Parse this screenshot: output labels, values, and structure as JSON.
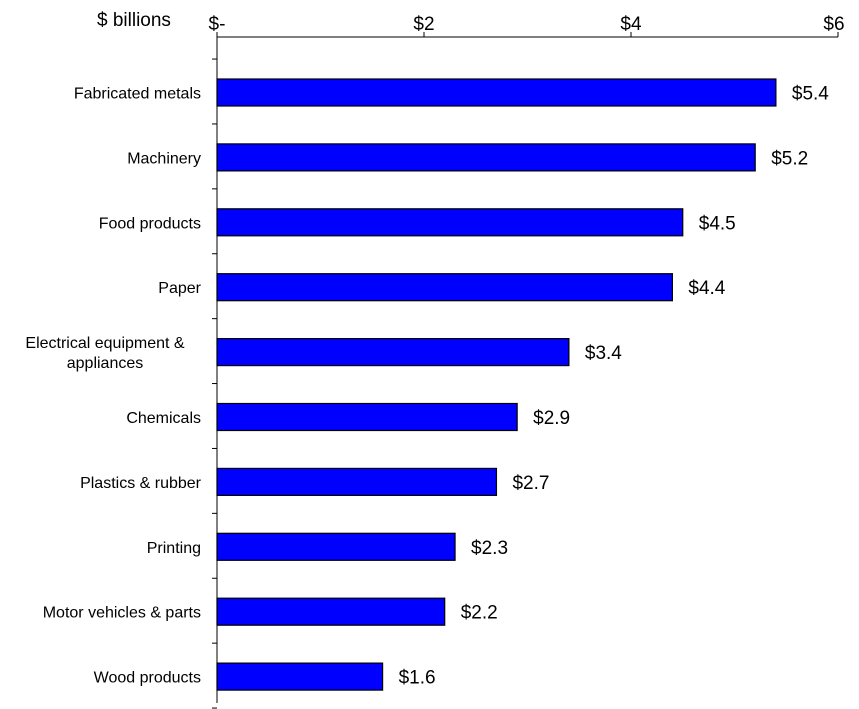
{
  "chart_data": {
    "type": "bar",
    "orientation": "horizontal",
    "unit_label": "$ billions",
    "categories": [
      [
        "Fabricated metals"
      ],
      [
        "Machinery"
      ],
      [
        "Food products"
      ],
      [
        "Paper"
      ],
      [
        "Electrical equipment &",
        "appliances"
      ],
      [
        "Chemicals"
      ],
      [
        "Plastics & rubber"
      ],
      [
        "Printing"
      ],
      [
        "Motor vehicles & parts"
      ],
      [
        "Wood products"
      ]
    ],
    "values": [
      5.4,
      5.2,
      4.5,
      4.4,
      3.4,
      2.9,
      2.7,
      2.3,
      2.2,
      1.6
    ],
    "value_labels": [
      "$5.4",
      "$5.2",
      "$4.5",
      "$4.4",
      "$3.4",
      "$2.9",
      "$2.7",
      "$2.3",
      "$2.2",
      "$1.6"
    ],
    "x_ticks": [
      0,
      2,
      4,
      6
    ],
    "x_tick_labels": [
      "$-",
      "$2",
      "$4",
      "$6"
    ],
    "xlim": [
      0,
      6
    ],
    "x_axis_position": "top",
    "grid": false,
    "legend": "none",
    "bar_color": "#0000FF",
    "bar_edge_color": "#000000"
  }
}
